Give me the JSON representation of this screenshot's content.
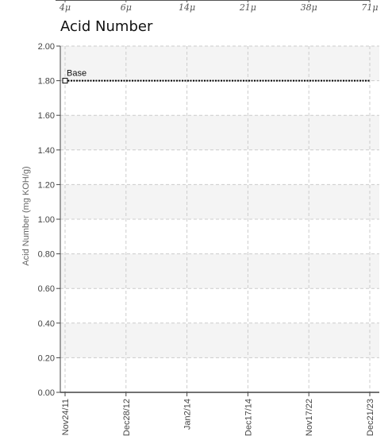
{
  "top_strip": {
    "tick_labels": [
      "4μ",
      "6μ",
      "14μ",
      "21μ",
      "38μ",
      "71μ"
    ]
  },
  "chart_data": {
    "type": "line",
    "title": "Acid Number",
    "ylabel": "Acid Number (mg KOH/g)",
    "xlabel": "",
    "ylim": [
      0,
      2
    ],
    "yticks": [
      0,
      0.2,
      0.4,
      0.6,
      0.8,
      1.0,
      1.2,
      1.4,
      1.6,
      1.8,
      2.0
    ],
    "ytick_labels": [
      "0.00",
      "0.20",
      "0.40",
      "0.60",
      "0.80",
      "1.00",
      "1.20",
      "1.40",
      "1.60",
      "1.80",
      "2.00"
    ],
    "categories": [
      "Nov24/11",
      "Dec28/12",
      "Jan2/14",
      "Dec17/14",
      "Nov17/22",
      "Dec21/23"
    ],
    "grid": true,
    "series": [
      {
        "name": "Base",
        "values": [
          1.8,
          1.8,
          1.8,
          1.8,
          1.8,
          1.8
        ],
        "style": "dotted",
        "color": "#000000"
      }
    ]
  },
  "colors": {
    "axis": "#444444",
    "grid": "#cccccc",
    "band": "#f4f4f4",
    "series": "#000000"
  }
}
